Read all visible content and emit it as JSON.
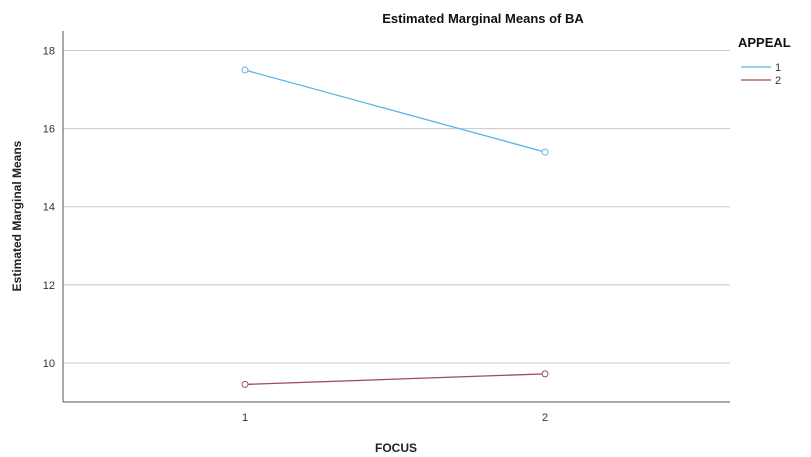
{
  "chart_data": {
    "type": "line",
    "title": "Estimated Marginal Means of BA",
    "xlabel": "FOCUS",
    "ylabel": "Estimated Marginal Means",
    "categories": [
      "1",
      "2"
    ],
    "y_ticks": [
      "10",
      "12",
      "14",
      "16",
      "18"
    ],
    "ylim": [
      9.0,
      18.5
    ],
    "grid": true,
    "legend_title": "APPEAL",
    "legend_position": "top-right",
    "series": [
      {
        "name": "1",
        "values": [
          17.5,
          15.4
        ],
        "color": "#5ab4e8"
      },
      {
        "name": "2",
        "values": [
          9.45,
          9.72
        ],
        "color": "#a04a5c"
      }
    ]
  }
}
